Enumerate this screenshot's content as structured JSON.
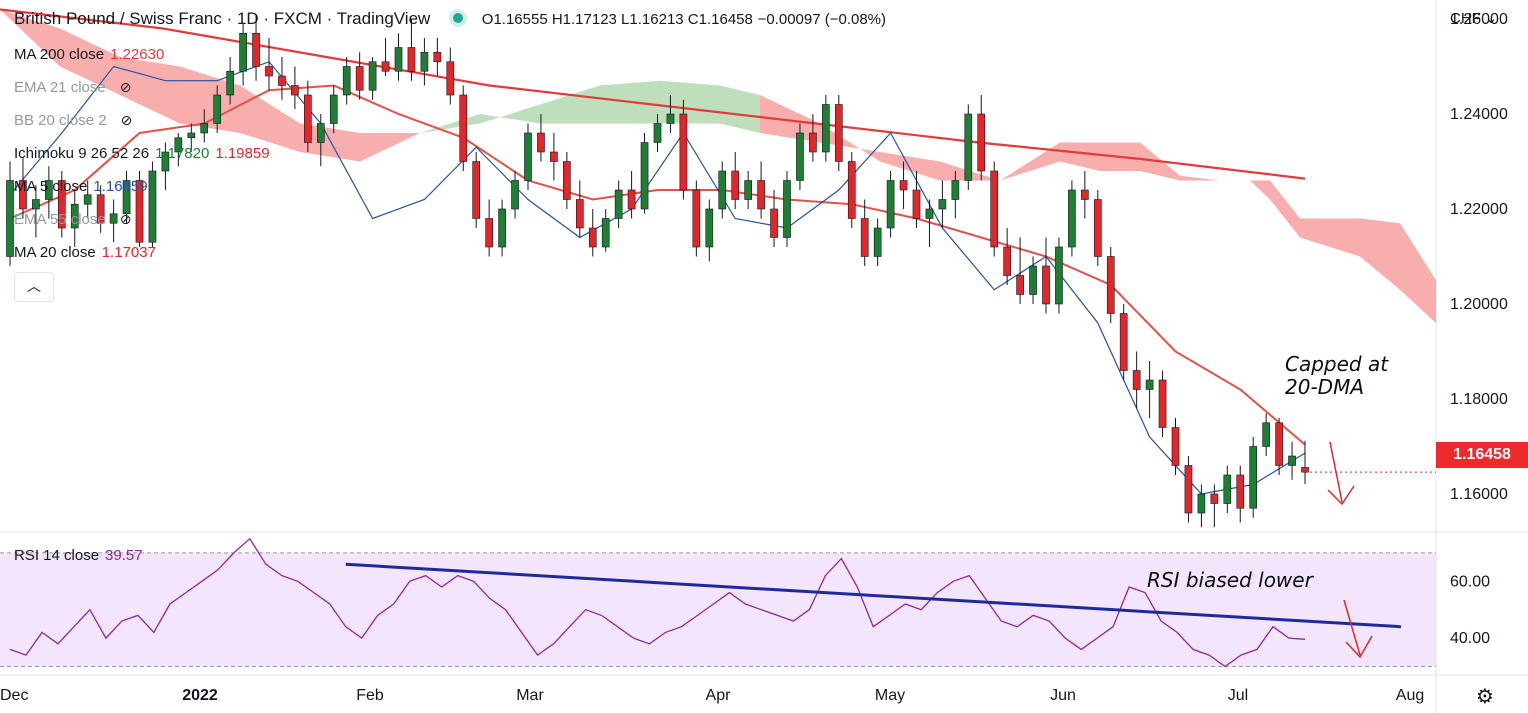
{
  "header": {
    "title": "British Pound / Swiss Franc · 1D · FXCM · TradingView",
    "ohlc": "O1.16555 H1.17123 L1.16213 C1.16458",
    "change": "−0.00097 (−0.08%)"
  },
  "currency": "CHF",
  "legend": {
    "ma200": {
      "label": "MA 200 close",
      "value": "1.22630"
    },
    "ema21": {
      "label": "EMA 21 close"
    },
    "bb20": {
      "label": "BB 20 close 2"
    },
    "ichimoku": {
      "label": "Ichimoku 9 26 52 26",
      "value1": "1.17820",
      "value2": "1.19859"
    },
    "ma5": {
      "label": "MA 5 close",
      "value": "1.16859"
    },
    "ma20": {
      "label": "MA 20 close",
      "value": "1.17037"
    },
    "hidden": {
      "label": "EMA 55 close"
    }
  },
  "rsi_legend": {
    "label": "RSI 14 close",
    "value": "39.57"
  },
  "annotations": {
    "capped_line1": "Capped at",
    "capped_line2": "20-DMA",
    "rsi_bias": "RSI biased lower"
  },
  "last_price": "1.16458",
  "colors": {
    "up": "#1e7e34",
    "down": "#e3262a",
    "ma200": "#e33b3b",
    "ma20": "#e55048",
    "ma5": "#2253a8",
    "cloud_bear": "#f8a5a5",
    "cloud_bull": "#b7dcb5",
    "rsi": "#8e24aa",
    "rsi_band": "#f3e5fc",
    "trendline": "#1f2a9a"
  },
  "chart_data": {
    "type": "candlestick",
    "price_axis": {
      "ylim": [
        1.152,
        1.264
      ],
      "ticks": [
        "1.26000",
        "1.24000",
        "1.22000",
        "1.20000",
        "1.18000",
        "1.16000"
      ]
    },
    "rsi_axis": {
      "ylim": [
        27,
        77
      ],
      "ticks": [
        "60.00",
        "40.00"
      ],
      "band": [
        30,
        70
      ]
    },
    "x_axis": {
      "labels": [
        "Dec",
        "2022",
        "Feb",
        "Mar",
        "Apr",
        "May",
        "Jun",
        "Jul",
        "Aug"
      ]
    },
    "candles": [
      [
        1.21,
        1.23,
        1.208,
        1.226
      ],
      [
        1.226,
        1.231,
        1.218,
        1.22
      ],
      [
        1.22,
        1.225,
        1.214,
        1.222
      ],
      [
        1.222,
        1.229,
        1.218,
        1.226
      ],
      [
        1.226,
        1.228,
        1.214,
        1.216
      ],
      [
        1.216,
        1.224,
        1.212,
        1.221
      ],
      [
        1.221,
        1.226,
        1.218,
        1.223
      ],
      [
        1.223,
        1.225,
        1.215,
        1.217
      ],
      [
        1.217,
        1.222,
        1.213,
        1.219
      ],
      [
        1.219,
        1.228,
        1.217,
        1.226
      ],
      [
        1.226,
        1.228,
        1.212,
        1.213
      ],
      [
        1.213,
        1.23,
        1.212,
        1.228
      ],
      [
        1.228,
        1.234,
        1.224,
        1.232
      ],
      [
        1.232,
        1.236,
        1.229,
        1.235
      ],
      [
        1.235,
        1.238,
        1.232,
        1.236
      ],
      [
        1.236,
        1.241,
        1.234,
        1.238
      ],
      [
        1.238,
        1.246,
        1.236,
        1.244
      ],
      [
        1.244,
        1.252,
        1.242,
        1.249
      ],
      [
        1.249,
        1.259,
        1.246,
        1.257
      ],
      [
        1.257,
        1.261,
        1.247,
        1.25
      ],
      [
        1.25,
        1.256,
        1.245,
        1.248
      ],
      [
        1.248,
        1.252,
        1.243,
        1.246
      ],
      [
        1.246,
        1.25,
        1.241,
        1.244
      ],
      [
        1.244,
        1.247,
        1.232,
        1.234
      ],
      [
        1.234,
        1.24,
        1.229,
        1.238
      ],
      [
        1.238,
        1.246,
        1.236,
        1.244
      ],
      [
        1.244,
        1.252,
        1.242,
        1.25
      ],
      [
        1.25,
        1.253,
        1.243,
        1.245
      ],
      [
        1.245,
        1.252,
        1.243,
        1.251
      ],
      [
        1.251,
        1.256,
        1.248,
        1.249
      ],
      [
        1.249,
        1.257,
        1.247,
        1.254
      ],
      [
        1.254,
        1.26,
        1.247,
        1.249
      ],
      [
        1.249,
        1.256,
        1.246,
        1.253
      ],
      [
        1.253,
        1.256,
        1.248,
        1.251
      ],
      [
        1.251,
        1.254,
        1.242,
        1.244
      ],
      [
        1.244,
        1.246,
        1.228,
        1.23
      ],
      [
        1.23,
        1.232,
        1.216,
        1.218
      ],
      [
        1.218,
        1.222,
        1.21,
        1.212
      ],
      [
        1.212,
        1.222,
        1.21,
        1.22
      ],
      [
        1.22,
        1.228,
        1.218,
        1.226
      ],
      [
        1.226,
        1.238,
        1.224,
        1.236
      ],
      [
        1.236,
        1.24,
        1.23,
        1.232
      ],
      [
        1.232,
        1.236,
        1.226,
        1.23
      ],
      [
        1.23,
        1.232,
        1.22,
        1.222
      ],
      [
        1.222,
        1.226,
        1.214,
        1.216
      ],
      [
        1.216,
        1.22,
        1.21,
        1.212
      ],
      [
        1.212,
        1.22,
        1.211,
        1.218
      ],
      [
        1.218,
        1.226,
        1.216,
        1.224
      ],
      [
        1.224,
        1.228,
        1.218,
        1.22
      ],
      [
        1.22,
        1.236,
        1.219,
        1.234
      ],
      [
        1.234,
        1.24,
        1.232,
        1.238
      ],
      [
        1.238,
        1.244,
        1.236,
        1.24
      ],
      [
        1.24,
        1.243,
        1.222,
        1.224
      ],
      [
        1.224,
        1.226,
        1.21,
        1.212
      ],
      [
        1.212,
        1.222,
        1.209,
        1.22
      ],
      [
        1.22,
        1.23,
        1.218,
        1.228
      ],
      [
        1.228,
        1.232,
        1.22,
        1.222
      ],
      [
        1.222,
        1.228,
        1.22,
        1.226
      ],
      [
        1.226,
        1.23,
        1.218,
        1.22
      ],
      [
        1.22,
        1.224,
        1.212,
        1.214
      ],
      [
        1.214,
        1.228,
        1.212,
        1.226
      ],
      [
        1.226,
        1.238,
        1.224,
        1.236
      ],
      [
        1.236,
        1.24,
        1.23,
        1.232
      ],
      [
        1.232,
        1.244,
        1.23,
        1.242
      ],
      [
        1.242,
        1.244,
        1.228,
        1.23
      ],
      [
        1.23,
        1.232,
        1.216,
        1.218
      ],
      [
        1.218,
        1.222,
        1.208,
        1.21
      ],
      [
        1.21,
        1.218,
        1.208,
        1.216
      ],
      [
        1.216,
        1.228,
        1.214,
        1.226
      ],
      [
        1.226,
        1.23,
        1.22,
        1.224
      ],
      [
        1.224,
        1.228,
        1.216,
        1.218
      ],
      [
        1.218,
        1.222,
        1.212,
        1.22
      ],
      [
        1.22,
        1.226,
        1.216,
        1.222
      ],
      [
        1.222,
        1.228,
        1.218,
        1.226
      ],
      [
        1.226,
        1.242,
        1.224,
        1.24
      ],
      [
        1.24,
        1.244,
        1.226,
        1.228
      ],
      [
        1.228,
        1.23,
        1.21,
        1.212
      ],
      [
        1.212,
        1.216,
        1.204,
        1.206
      ],
      [
        1.206,
        1.214,
        1.2,
        1.202
      ],
      [
        1.202,
        1.21,
        1.2,
        1.208
      ],
      [
        1.208,
        1.214,
        1.198,
        1.2
      ],
      [
        1.2,
        1.214,
        1.198,
        1.212
      ],
      [
        1.212,
        1.226,
        1.21,
        1.224
      ],
      [
        1.224,
        1.228,
        1.218,
        1.222
      ],
      [
        1.222,
        1.224,
        1.208,
        1.21
      ],
      [
        1.21,
        1.212,
        1.196,
        1.198
      ],
      [
        1.198,
        1.2,
        1.184,
        1.186
      ],
      [
        1.186,
        1.19,
        1.178,
        1.182
      ],
      [
        1.182,
        1.188,
        1.176,
        1.184
      ],
      [
        1.184,
        1.186,
        1.172,
        1.174
      ],
      [
        1.174,
        1.176,
        1.164,
        1.166
      ],
      [
        1.166,
        1.168,
        1.154,
        1.156
      ],
      [
        1.156,
        1.162,
        1.153,
        1.16
      ],
      [
        1.16,
        1.162,
        1.153,
        1.158
      ],
      [
        1.158,
        1.166,
        1.156,
        1.164
      ],
      [
        1.164,
        1.166,
        1.154,
        1.157
      ],
      [
        1.157,
        1.172,
        1.155,
        1.17
      ],
      [
        1.17,
        1.177,
        1.168,
        1.175
      ],
      [
        1.175,
        1.176,
        1.164,
        1.166
      ],
      [
        1.166,
        1.171,
        1.163,
        1.168
      ],
      [
        1.1656,
        1.1712,
        1.1621,
        1.1646
      ]
    ],
    "ma200": [
      1.262,
      1.258,
      1.252,
      1.246,
      1.242,
      1.238,
      1.234,
      1.2305,
      1.2264
    ],
    "ma20": [
      1.218,
      1.224,
      1.236,
      1.238,
      1.245,
      1.246,
      1.24,
      1.235,
      1.226,
      1.222,
      1.224,
      1.224,
      1.222,
      1.221,
      1.218,
      1.214,
      1.21,
      1.204,
      1.19,
      1.182,
      1.1704
    ],
    "ma5": [
      1.223,
      1.236,
      1.25,
      1.247,
      1.247,
      1.251,
      1.238,
      1.218,
      1.222,
      1.233,
      1.222,
      1.214,
      1.22,
      1.236,
      1.218,
      1.216,
      1.224,
      1.236,
      1.216,
      1.203,
      1.21,
      1.196,
      1.172,
      1.16,
      1.162,
      1.1686
    ],
    "rsi": [
      36,
      34,
      42,
      38,
      44,
      50,
      40,
      46,
      48,
      42,
      52,
      56,
      60,
      64,
      70,
      75,
      66,
      62,
      60,
      56,
      52,
      44,
      40,
      48,
      52,
      60,
      62,
      58,
      62,
      60,
      54,
      50,
      42,
      34,
      38,
      44,
      50,
      48,
      44,
      40,
      38,
      42,
      44,
      48,
      52,
      56,
      52,
      50,
      48,
      46,
      50,
      62,
      68,
      58,
      44,
      48,
      52,
      50,
      56,
      60,
      62,
      54,
      46,
      44,
      48,
      46,
      40,
      36,
      40,
      44,
      58,
      56,
      46,
      42,
      36,
      34,
      30,
      34,
      36,
      44,
      40,
      39.57
    ],
    "rsi_trendline": [
      [
        21,
        66
      ],
      [
        87,
        44
      ]
    ]
  }
}
